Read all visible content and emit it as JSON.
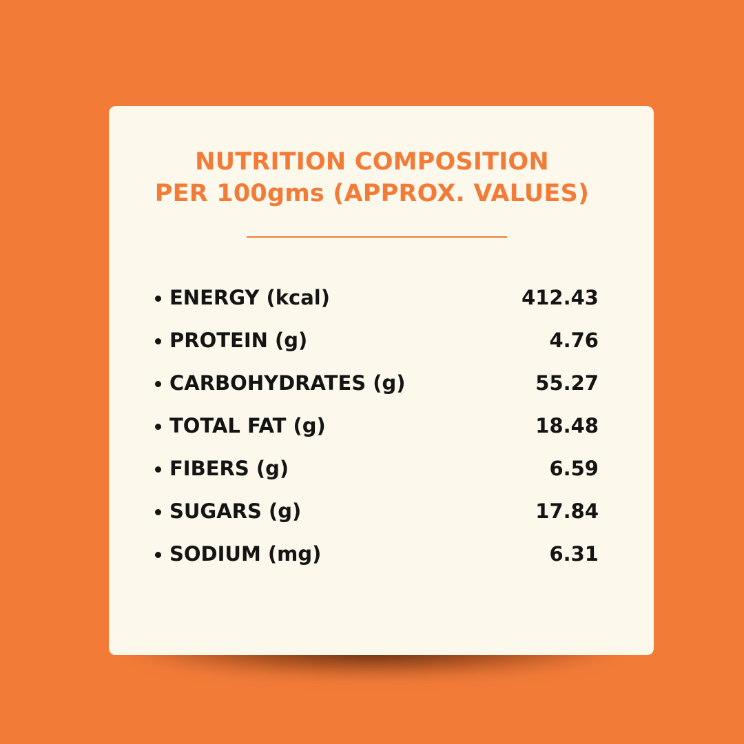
{
  "title": {
    "line1": "NUTRITION COMPOSITION",
    "line2": "PER 100gms (APPROX. VALUES)"
  },
  "colors": {
    "background": "#f37b38",
    "card": "#fcf8ec",
    "accent": "#f37b38",
    "text": "#141414"
  },
  "nutrients": [
    {
      "label": "ENERGY (kcal)",
      "value": "412.43"
    },
    {
      "label": "PROTEIN (g)",
      "value": "4.76"
    },
    {
      "label": "CARBOHYDRATES (g)",
      "value": "55.27"
    },
    {
      "label": "TOTAL FAT (g)",
      "value": "18.48"
    },
    {
      "label": "FIBERS (g)",
      "value": "6.59"
    },
    {
      "label": "SUGARS (g)",
      "value": "17.84"
    },
    {
      "label": "SODIUM (mg)",
      "value": "6.31"
    }
  ]
}
